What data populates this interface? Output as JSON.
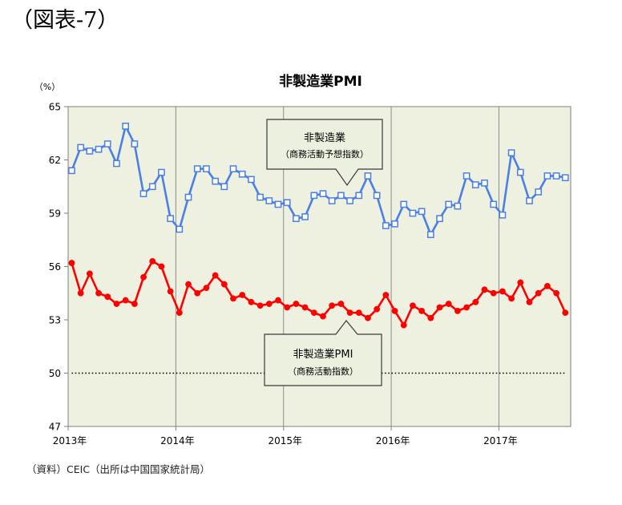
{
  "figure_label": "（図表-7）",
  "source": "（資料）CEIC（出所は中国国家統計局）",
  "chart_data": {
    "type": "line",
    "title": "非製造業PMI",
    "ylabel": "（%）",
    "ylim": [
      47,
      65
    ],
    "yticks": [
      65,
      62,
      59,
      56,
      53,
      50,
      47
    ],
    "x_ticks": [
      "2013-01",
      "2014-01",
      "2015-01",
      "2016-01",
      "2017-01"
    ],
    "x_tick_labels": [
      "2013年",
      "2014年",
      "2015年",
      "2016年",
      "2017年"
    ],
    "grid": {
      "x": true,
      "y": false
    },
    "plot_background": "#EEF1E0",
    "reference_line": {
      "y": 50,
      "color": "#000000"
    },
    "x": [
      "2013-01",
      "2013-02",
      "2013-03",
      "2013-04",
      "2013-05",
      "2013-06",
      "2013-07",
      "2013-08",
      "2013-09",
      "2013-10",
      "2013-11",
      "2013-12",
      "2014-01",
      "2014-02",
      "2014-03",
      "2014-04",
      "2014-05",
      "2014-06",
      "2014-07",
      "2014-08",
      "2014-09",
      "2014-10",
      "2014-11",
      "2014-12",
      "2015-01",
      "2015-02",
      "2015-03",
      "2015-04",
      "2015-05",
      "2015-06",
      "2015-07",
      "2015-08",
      "2015-09",
      "2015-10",
      "2015-11",
      "2015-12",
      "2016-01",
      "2016-02",
      "2016-03",
      "2016-04",
      "2016-05",
      "2016-06",
      "2016-07",
      "2016-08",
      "2016-09",
      "2016-10",
      "2016-11",
      "2016-12",
      "2017-01",
      "2017-02",
      "2017-03",
      "2017-04",
      "2017-05",
      "2017-06",
      "2017-07",
      "2017-08"
    ],
    "series": [
      {
        "name": "非製造業",
        "note": "（商務活動予想指数）",
        "color": "#4A7FE5",
        "marker": "square-open",
        "values": [
          61.4,
          62.7,
          62.5,
          62.6,
          62.9,
          61.8,
          63.9,
          62.9,
          60.1,
          60.5,
          61.3,
          58.7,
          58.1,
          59.9,
          61.5,
          61.5,
          60.8,
          60.5,
          61.5,
          61.2,
          60.9,
          59.9,
          59.7,
          59.5,
          59.6,
          58.7,
          58.8,
          60.0,
          60.1,
          59.7,
          60.0,
          59.7,
          60.0,
          61.1,
          60.0,
          58.3,
          58.4,
          59.5,
          59.0,
          59.1,
          57.8,
          58.7,
          59.5,
          59.4,
          61.1,
          60.6,
          60.7,
          59.5,
          58.9,
          62.4,
          61.3,
          59.7,
          60.2,
          61.1,
          61.1,
          61.0
        ]
      },
      {
        "name": "非製造業PMI",
        "note": "（商務活動指数）",
        "color": "#FF0000",
        "marker": "circle-filled",
        "values": [
          56.2,
          54.5,
          55.6,
          54.5,
          54.3,
          53.9,
          54.1,
          53.9,
          55.4,
          56.3,
          56.0,
          54.6,
          53.4,
          55.0,
          54.5,
          54.8,
          55.5,
          55.0,
          54.2,
          54.4,
          54.0,
          53.8,
          53.9,
          54.1,
          53.7,
          53.9,
          53.7,
          53.4,
          53.2,
          53.8,
          53.9,
          53.4,
          53.4,
          53.1,
          53.6,
          54.4,
          53.5,
          52.7,
          53.8,
          53.5,
          53.1,
          53.7,
          53.9,
          53.5,
          53.7,
          54.0,
          54.7,
          54.5,
          54.6,
          54.2,
          55.1,
          54.0,
          54.5,
          54.9,
          54.5,
          53.4
        ]
      }
    ]
  }
}
